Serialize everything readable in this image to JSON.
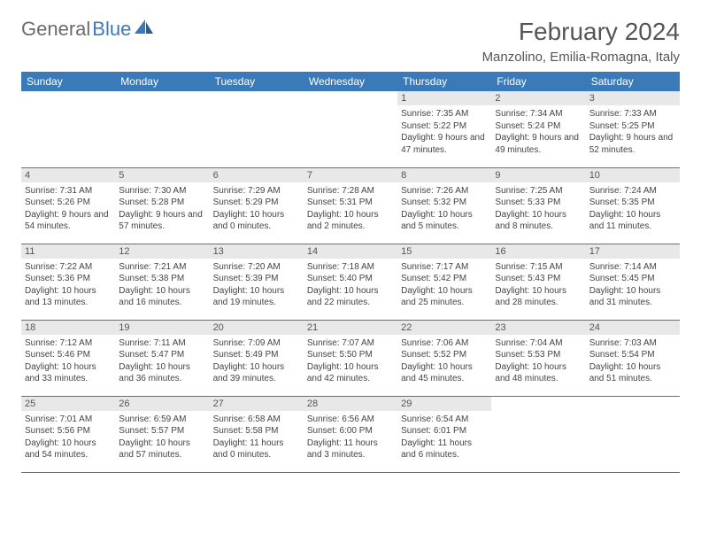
{
  "logo": {
    "text1": "General",
    "text2": "Blue",
    "color1": "#6b6b6b",
    "color2": "#3b7ab8"
  },
  "title": "February 2024",
  "location": "Manzolino, Emilia-Romagna, Italy",
  "weekdays": [
    "Sunday",
    "Monday",
    "Tuesday",
    "Wednesday",
    "Thursday",
    "Friday",
    "Saturday"
  ],
  "colors": {
    "header_bg": "#3b7ab8",
    "header_text": "#ffffff",
    "daynum_bg": "#e8e8e8",
    "cell_border": "#3b7ab8",
    "text": "#444444"
  },
  "typography": {
    "title_fontsize": 28,
    "location_fontsize": 15,
    "weekday_fontsize": 12,
    "cell_fontsize": 10
  },
  "layout": {
    "rows": 5,
    "cols": 7,
    "first_weekday_index": 4,
    "days_in_month": 29
  },
  "days": [
    {
      "n": 1,
      "sunrise": "Sunrise: 7:35 AM",
      "sunset": "Sunset: 5:22 PM",
      "daylight": "Daylight: 9 hours and 47 minutes."
    },
    {
      "n": 2,
      "sunrise": "Sunrise: 7:34 AM",
      "sunset": "Sunset: 5:24 PM",
      "daylight": "Daylight: 9 hours and 49 minutes."
    },
    {
      "n": 3,
      "sunrise": "Sunrise: 7:33 AM",
      "sunset": "Sunset: 5:25 PM",
      "daylight": "Daylight: 9 hours and 52 minutes."
    },
    {
      "n": 4,
      "sunrise": "Sunrise: 7:31 AM",
      "sunset": "Sunset: 5:26 PM",
      "daylight": "Daylight: 9 hours and 54 minutes."
    },
    {
      "n": 5,
      "sunrise": "Sunrise: 7:30 AM",
      "sunset": "Sunset: 5:28 PM",
      "daylight": "Daylight: 9 hours and 57 minutes."
    },
    {
      "n": 6,
      "sunrise": "Sunrise: 7:29 AM",
      "sunset": "Sunset: 5:29 PM",
      "daylight": "Daylight: 10 hours and 0 minutes."
    },
    {
      "n": 7,
      "sunrise": "Sunrise: 7:28 AM",
      "sunset": "Sunset: 5:31 PM",
      "daylight": "Daylight: 10 hours and 2 minutes."
    },
    {
      "n": 8,
      "sunrise": "Sunrise: 7:26 AM",
      "sunset": "Sunset: 5:32 PM",
      "daylight": "Daylight: 10 hours and 5 minutes."
    },
    {
      "n": 9,
      "sunrise": "Sunrise: 7:25 AM",
      "sunset": "Sunset: 5:33 PM",
      "daylight": "Daylight: 10 hours and 8 minutes."
    },
    {
      "n": 10,
      "sunrise": "Sunrise: 7:24 AM",
      "sunset": "Sunset: 5:35 PM",
      "daylight": "Daylight: 10 hours and 11 minutes."
    },
    {
      "n": 11,
      "sunrise": "Sunrise: 7:22 AM",
      "sunset": "Sunset: 5:36 PM",
      "daylight": "Daylight: 10 hours and 13 minutes."
    },
    {
      "n": 12,
      "sunrise": "Sunrise: 7:21 AM",
      "sunset": "Sunset: 5:38 PM",
      "daylight": "Daylight: 10 hours and 16 minutes."
    },
    {
      "n": 13,
      "sunrise": "Sunrise: 7:20 AM",
      "sunset": "Sunset: 5:39 PM",
      "daylight": "Daylight: 10 hours and 19 minutes."
    },
    {
      "n": 14,
      "sunrise": "Sunrise: 7:18 AM",
      "sunset": "Sunset: 5:40 PM",
      "daylight": "Daylight: 10 hours and 22 minutes."
    },
    {
      "n": 15,
      "sunrise": "Sunrise: 7:17 AM",
      "sunset": "Sunset: 5:42 PM",
      "daylight": "Daylight: 10 hours and 25 minutes."
    },
    {
      "n": 16,
      "sunrise": "Sunrise: 7:15 AM",
      "sunset": "Sunset: 5:43 PM",
      "daylight": "Daylight: 10 hours and 28 minutes."
    },
    {
      "n": 17,
      "sunrise": "Sunrise: 7:14 AM",
      "sunset": "Sunset: 5:45 PM",
      "daylight": "Daylight: 10 hours and 31 minutes."
    },
    {
      "n": 18,
      "sunrise": "Sunrise: 7:12 AM",
      "sunset": "Sunset: 5:46 PM",
      "daylight": "Daylight: 10 hours and 33 minutes."
    },
    {
      "n": 19,
      "sunrise": "Sunrise: 7:11 AM",
      "sunset": "Sunset: 5:47 PM",
      "daylight": "Daylight: 10 hours and 36 minutes."
    },
    {
      "n": 20,
      "sunrise": "Sunrise: 7:09 AM",
      "sunset": "Sunset: 5:49 PM",
      "daylight": "Daylight: 10 hours and 39 minutes."
    },
    {
      "n": 21,
      "sunrise": "Sunrise: 7:07 AM",
      "sunset": "Sunset: 5:50 PM",
      "daylight": "Daylight: 10 hours and 42 minutes."
    },
    {
      "n": 22,
      "sunrise": "Sunrise: 7:06 AM",
      "sunset": "Sunset: 5:52 PM",
      "daylight": "Daylight: 10 hours and 45 minutes."
    },
    {
      "n": 23,
      "sunrise": "Sunrise: 7:04 AM",
      "sunset": "Sunset: 5:53 PM",
      "daylight": "Daylight: 10 hours and 48 minutes."
    },
    {
      "n": 24,
      "sunrise": "Sunrise: 7:03 AM",
      "sunset": "Sunset: 5:54 PM",
      "daylight": "Daylight: 10 hours and 51 minutes."
    },
    {
      "n": 25,
      "sunrise": "Sunrise: 7:01 AM",
      "sunset": "Sunset: 5:56 PM",
      "daylight": "Daylight: 10 hours and 54 minutes."
    },
    {
      "n": 26,
      "sunrise": "Sunrise: 6:59 AM",
      "sunset": "Sunset: 5:57 PM",
      "daylight": "Daylight: 10 hours and 57 minutes."
    },
    {
      "n": 27,
      "sunrise": "Sunrise: 6:58 AM",
      "sunset": "Sunset: 5:58 PM",
      "daylight": "Daylight: 11 hours and 0 minutes."
    },
    {
      "n": 28,
      "sunrise": "Sunrise: 6:56 AM",
      "sunset": "Sunset: 6:00 PM",
      "daylight": "Daylight: 11 hours and 3 minutes."
    },
    {
      "n": 29,
      "sunrise": "Sunrise: 6:54 AM",
      "sunset": "Sunset: 6:01 PM",
      "daylight": "Daylight: 11 hours and 6 minutes."
    }
  ]
}
